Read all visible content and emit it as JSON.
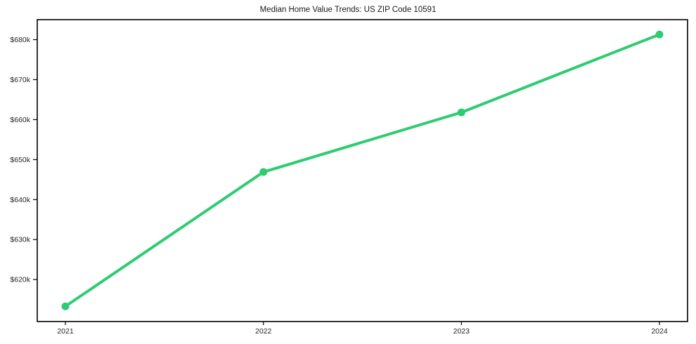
{
  "page": {
    "background": "#ffffff"
  },
  "chart_data": {
    "type": "line",
    "title": "Median Home Value Trends: US ZIP Code 10591",
    "categories": [
      "2021",
      "2022",
      "2023",
      "2024"
    ],
    "x": [
      2021,
      2022,
      2023,
      2024
    ],
    "series": [
      {
        "name": "Median Home Value",
        "values": [
          613.3,
          646.9,
          661.8,
          681.3
        ],
        "unit": "thousand USD",
        "color": "#2ecc71"
      }
    ],
    "xlabel": "",
    "ylabel": "",
    "ylim": [
      609.5,
      685.0
    ],
    "y_ticks": [
      {
        "value": 620,
        "label": "$620k"
      },
      {
        "value": 630,
        "label": "$630k"
      },
      {
        "value": 640,
        "label": "$640k"
      },
      {
        "value": 650,
        "label": "$650k"
      },
      {
        "value": 660,
        "label": "$660k"
      },
      {
        "value": 670,
        "label": "$670k"
      },
      {
        "value": 680,
        "label": "$680k"
      }
    ],
    "grid": false,
    "legend_position": "none",
    "colors": {
      "line": "#2ecc71",
      "marker": "#2ecc71",
      "frame": "#000000",
      "tick_label": "#262626",
      "title": "#1a1a1a"
    }
  }
}
